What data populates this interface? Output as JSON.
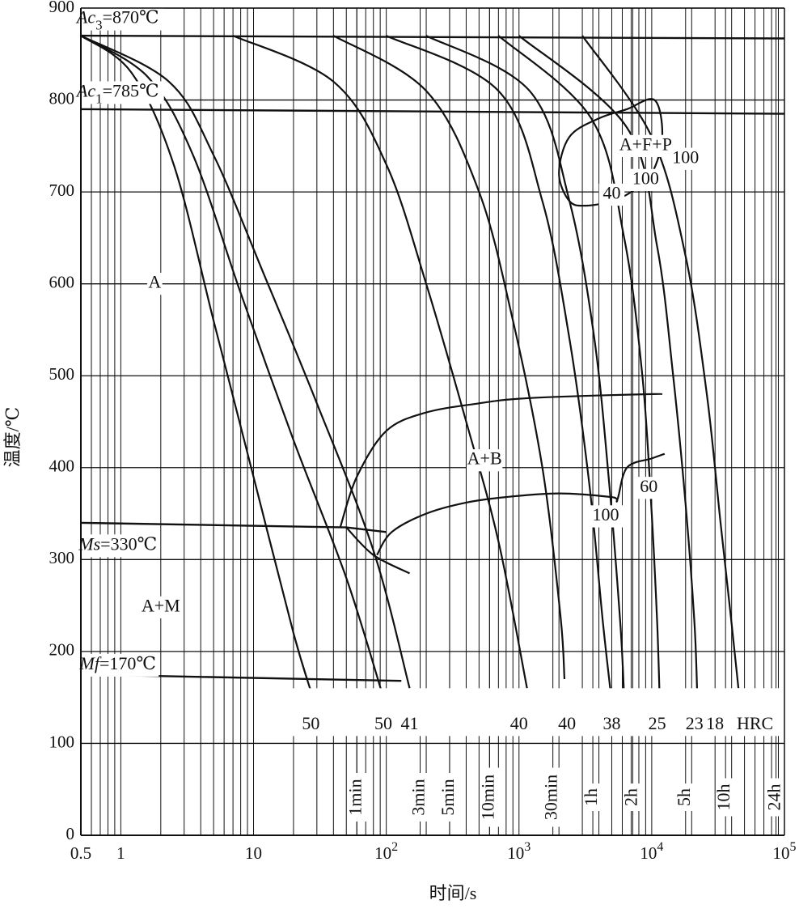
{
  "chart_data": {
    "type": "line",
    "title": "",
    "xlabel": "时间/s",
    "ylabel": "温度/℃",
    "x_scale": "log",
    "xlim": [
      0.5,
      100000
    ],
    "ylim": [
      0,
      900
    ],
    "x_ticks": [
      {
        "value": 0.5,
        "label": "0.5"
      },
      {
        "value": 1,
        "label": "1"
      },
      {
        "value": 10,
        "label": "10"
      },
      {
        "value": 100,
        "label": "10",
        "sup": "2"
      },
      {
        "value": 1000,
        "label": "10",
        "sup": "3"
      },
      {
        "value": 10000,
        "label": "10",
        "sup": "4"
      },
      {
        "value": 100000,
        "label": "10",
        "sup": "5"
      }
    ],
    "y_ticks": [
      0,
      100,
      200,
      300,
      400,
      500,
      600,
      700,
      800,
      900
    ],
    "time_marks": [
      {
        "label": "1min",
        "value": 60
      },
      {
        "label": "3min",
        "value": 180
      },
      {
        "label": "5min",
        "value": 300
      },
      {
        "label": "10min",
        "value": 600
      },
      {
        "label": "30min",
        "value": 1800
      },
      {
        "label": "1h",
        "value": 3600
      },
      {
        "label": "2h",
        "value": 7200
      },
      {
        "label": "5h",
        "value": 18000
      },
      {
        "label": "10h",
        "value": 36000
      },
      {
        "label": "24h",
        "value": 86400
      }
    ],
    "reference_lines": [
      {
        "name": "Ac3",
        "prefix": "Ac",
        "sub": "3",
        "suffix": "=870℃",
        "x": [
          0.5,
          100000
        ],
        "y": [
          870,
          867
        ]
      },
      {
        "name": "Ac1",
        "prefix": "Ac",
        "sub": "1",
        "suffix": "=785℃",
        "x": [
          0.5,
          100000
        ],
        "y": [
          790,
          785
        ]
      },
      {
        "name": "Ms",
        "prefix": "Ms",
        "sub": "",
        "suffix": "=330℃",
        "x": [
          0.5,
          50,
          100
        ],
        "y": [
          340,
          335,
          330
        ]
      },
      {
        "name": "Mf",
        "prefix": "Mf",
        "sub": "",
        "suffix": "=170℃",
        "x": [
          0.5,
          130
        ],
        "y": [
          175,
          168
        ]
      }
    ],
    "cooling_curves": [
      {
        "hrc": "50",
        "x": [
          0.5,
          1.2,
          2.5,
          5,
          10,
          20,
          28
        ],
        "y": [
          870,
          830,
          730,
          560,
          390,
          220,
          150
        ]
      },
      {
        "hrc": "50",
        "x": [
          0.5,
          1.6,
          3.5,
          8,
          20,
          50,
          95
        ],
        "y": [
          870,
          825,
          740,
          590,
          430,
          280,
          150
        ]
      },
      {
        "hrc": "41",
        "x": [
          0.5,
          2.3,
          5,
          12,
          30,
          80,
          150
        ],
        "y": [
          870,
          820,
          740,
          610,
          470,
          310,
          160
        ]
      },
      {
        "hrc": "40",
        "x": [
          7,
          40,
          100,
          200,
          400,
          700,
          1150
        ],
        "y": [
          870,
          820,
          730,
          600,
          450,
          320,
          160
        ]
      },
      {
        "hrc": "40",
        "x": [
          40,
          200,
          500,
          900,
          1500,
          2050,
          2200
        ],
        "y": [
          870,
          810,
          700,
          560,
          400,
          240,
          170
        ]
      },
      {
        "hrc": "38",
        "x": [
          100,
          700,
          1500,
          2400,
          3400,
          4300,
          5000
        ],
        "y": [
          870,
          810,
          690,
          540,
          380,
          230,
          145
        ]
      },
      {
        "hrc": "",
        "x": [
          200,
          1200,
          2400,
          3700,
          4800,
          5800,
          6200
        ],
        "y": [
          870,
          810,
          690,
          540,
          380,
          230,
          150
        ]
      },
      {
        "hrc": "25",
        "x": [
          700,
          3500,
          6200,
          8500,
          10000,
          11000,
          11500
        ],
        "y": [
          870,
          780,
          650,
          500,
          350,
          230,
          145
        ]
      },
      {
        "hrc": "23",
        "x": [
          1000,
          6500,
          11000,
          14500,
          18000,
          21000,
          22000
        ],
        "y": [
          870,
          770,
          640,
          500,
          360,
          230,
          155
        ]
      },
      {
        "hrc": "18",
        "x": [
          3000,
          10000,
          18000,
          26000,
          33000,
          40000,
          45000
        ],
        "y": [
          870,
          760,
          630,
          480,
          340,
          230,
          160
        ]
      }
    ],
    "curve_hardness_labels": [
      {
        "text": "50",
        "x": 27,
        "y": 120
      },
      {
        "text": "50",
        "x": 95,
        "y": 120
      },
      {
        "text": "41",
        "x": 150,
        "y": 120
      },
      {
        "text": "40",
        "x": 1000,
        "y": 120
      },
      {
        "text": "40",
        "x": 2300,
        "y": 120
      },
      {
        "text": "38",
        "x": 5000,
        "y": 120
      },
      {
        "text": "25",
        "x": 11000,
        "y": 120
      },
      {
        "text": "23",
        "x": 21000,
        "y": 120
      },
      {
        "text": "18",
        "x": 30000,
        "y": 120
      },
      {
        "text": "HRC",
        "x": 60000,
        "y": 120
      }
    ],
    "regions": [
      {
        "name": "A-F-P",
        "x": [
          3200,
          2400,
          2000,
          2400,
          4000,
          6500,
          10500,
          12000,
          10000,
          7000,
          5000,
          3200
        ],
        "y": [
          685,
          690,
          720,
          760,
          780,
          790,
          800,
          760,
          720,
          700,
          690,
          685
        ]
      },
      {
        "name": "Bs",
        "x": [
          45,
          60,
          100,
          200,
          500,
          1000,
          3000,
          10000,
          12000
        ],
        "y": [
          335,
          390,
          440,
          460,
          470,
          475,
          478,
          480,
          480
        ]
      },
      {
        "name": "Bf",
        "x": [
          85,
          110,
          200,
          400,
          800,
          2000,
          5000,
          5500,
          6500,
          10000,
          12500
        ],
        "y": [
          305,
          330,
          350,
          362,
          368,
          372,
          368,
          365,
          400,
          410,
          415
        ]
      },
      {
        "name": "Ms-cross",
        "x": [
          50,
          80,
          150
        ],
        "y": [
          335,
          305,
          285
        ]
      }
    ],
    "annotations": [
      {
        "text": "A",
        "x": 1.8,
        "y": 600
      },
      {
        "text": "A+F+P",
        "x": 9000,
        "y": 750
      },
      {
        "text": "100",
        "x": 18000,
        "y": 736
      },
      {
        "text": "100",
        "x": 9000,
        "y": 713
      },
      {
        "text": "40",
        "x": 5000,
        "y": 697
      },
      {
        "text": "A+B",
        "x": 550,
        "y": 408
      },
      {
        "text": "60",
        "x": 9500,
        "y": 378
      },
      {
        "text": "100",
        "x": 4500,
        "y": 347
      },
      {
        "text": "A+M",
        "x": 2,
        "y": 248
      }
    ]
  }
}
